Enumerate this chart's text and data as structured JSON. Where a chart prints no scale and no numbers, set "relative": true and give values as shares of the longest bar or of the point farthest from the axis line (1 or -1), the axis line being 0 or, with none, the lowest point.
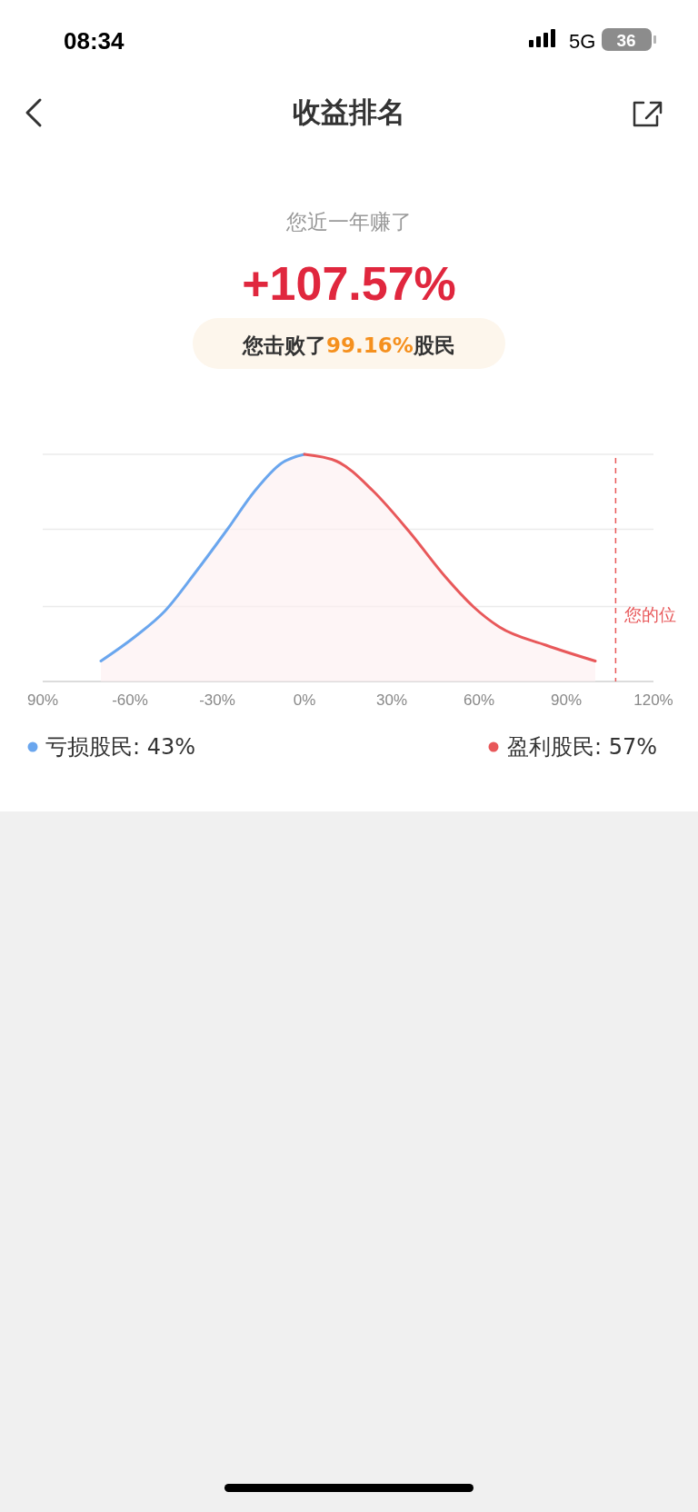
{
  "chart_data": {
    "type": "area",
    "title": "收益排名",
    "subtitle": "您近一年赚了",
    "annotations": [
      "08:34",
      "5G",
      "36",
      "+107.57%",
      "您击败了99.16%股民"
    ],
    "relative": true,
    "legend": "bottom",
    "xlim": [
      -90,
      120
    ],
    "xticks": [
      {
        "value": -90,
        "label": "90%"
      },
      {
        "value": -60,
        "label": "-60%"
      },
      {
        "value": -30,
        "label": "-30%"
      },
      {
        "value": 0,
        "label": "0%"
      },
      {
        "value": 30,
        "label": "30%"
      },
      {
        "value": 60,
        "label": "60%"
      },
      {
        "value": 90,
        "label": "90%"
      },
      {
        "value": 120,
        "label": "120%"
      }
    ],
    "series": [
      {
        "name": "亏损股民: 43%",
        "color": "#6aa6ee",
        "x": [
          -70,
          -58,
          -48,
          -37.5,
          -26.5,
          -17,
          -8,
          0
        ],
        "values": [
          0.09,
          0.2,
          0.31,
          0.48,
          0.67,
          0.84,
          0.96,
          1
        ]
      },
      {
        "name": "盈利股民: 57%",
        "color": "#e8585a",
        "x": [
          0,
          11,
          23.5,
          36,
          48.5,
          58,
          67,
          83,
          100
        ],
        "values": [
          1,
          0.97,
          0.84,
          0.66,
          0.46,
          0.33,
          0.24,
          0.16,
          0.09
        ]
      }
    ],
    "ref_lines": [
      {
        "axis": "y",
        "value": 0.33,
        "color": "#ebebeb"
      },
      {
        "axis": "y",
        "value": 0.67,
        "color": "#ebebeb"
      },
      {
        "axis": "y",
        "value": 1,
        "color": "#ebebeb"
      },
      {
        "axis": "x",
        "value": 107,
        "label": "您的位",
        "color": "#e8585a",
        "line_style": "dashed"
      }
    ]
  }
}
